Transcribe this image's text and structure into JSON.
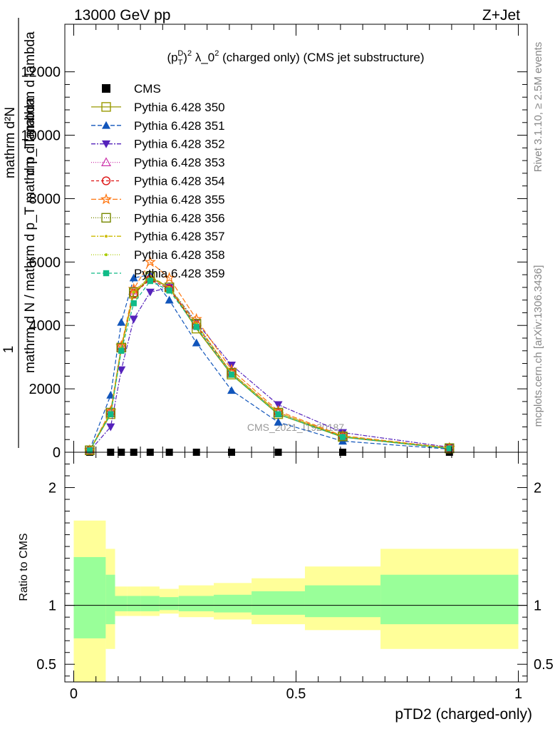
{
  "header": {
    "energy_label": "13000 GeV pp",
    "process_label": "Z+Jet",
    "plot_title": "(p_T^D)^2 λ_0^2 (charged only) (CMS jet substructure)"
  },
  "side_labels": {
    "rivet": "Rivet 3.1.10, ≥ 2.5M events",
    "mcplots": "mcplots.cern.ch [arXiv:1306.3436]"
  },
  "watermark": "CMS_2021_I1920187",
  "colors": {
    "band_yellow": "#ffff99",
    "band_green": "#99ff99",
    "cms": "#000000"
  },
  "chart_data": [
    {
      "type": "line",
      "panel": "main",
      "ylabel_numerator": "1",
      "ylabel_denominator": "mathrm d N / mathrm d p_T mathrm d lambda",
      "ylabel_top": "mathrm d^2N",
      "xlim": [
        -0.02,
        1.02
      ],
      "ylim": [
        0,
        13500
      ],
      "yticks": [
        0,
        2000,
        4000,
        6000,
        8000,
        10000,
        12000
      ],
      "ytick_labels": [
        "0",
        "2000",
        "4000",
        "6000",
        "8000",
        "10000",
        "12000"
      ],
      "legend_position": "top-left",
      "x": [
        0.036,
        0.083,
        0.107,
        0.135,
        0.172,
        0.215,
        0.276,
        0.355,
        0.46,
        0.605,
        0.845
      ],
      "cms_values": [
        0,
        0,
        0,
        0,
        0,
        0,
        0,
        0,
        0,
        0,
        0
      ],
      "series": [
        {
          "name": "CMS",
          "color": "#000000",
          "marker": "square-filled",
          "dash": "none",
          "values": [
            0,
            0,
            0,
            0,
            0,
            0,
            0,
            0,
            0,
            0,
            0
          ]
        },
        {
          "name": "Pythia 6.428 350",
          "color": "#999900",
          "marker": "square-open",
          "dash": "solid",
          "values": [
            60,
            1200,
            3300,
            5000,
            5500,
            5200,
            3900,
            2450,
            1200,
            480,
            120
          ]
        },
        {
          "name": "Pythia 6.428 351",
          "color": "#1155bb",
          "marker": "triangle-up-filled",
          "dash": "6,3",
          "values": [
            80,
            1800,
            4100,
            5500,
            5600,
            4800,
            3450,
            1950,
            950,
            350,
            100
          ]
        },
        {
          "name": "Pythia 6.428 352",
          "color": "#5522bb",
          "marker": "triangle-down-filled",
          "dash": "6,2,2,2",
          "values": [
            40,
            800,
            2600,
            4200,
            5050,
            5200,
            4100,
            2750,
            1500,
            620,
            160
          ]
        },
        {
          "name": "Pythia 6.428 353",
          "color": "#cc33aa",
          "marker": "triangle-up-open",
          "dash": "1,2",
          "values": [
            60,
            1250,
            3300,
            5100,
            5500,
            5200,
            4000,
            2500,
            1250,
            500,
            130
          ]
        },
        {
          "name": "Pythia 6.428 354",
          "color": "#dd1111",
          "marker": "circle-open",
          "dash": "4,3",
          "values": [
            60,
            1250,
            3300,
            5000,
            5450,
            5150,
            4000,
            2500,
            1250,
            490,
            130
          ]
        },
        {
          "name": "Pythia 6.428 355",
          "color": "#ff7711",
          "marker": "star-open",
          "dash": "7,3",
          "values": [
            60,
            1300,
            3350,
            5150,
            6000,
            5500,
            4200,
            2600,
            1300,
            520,
            140
          ]
        },
        {
          "name": "Pythia 6.428 356",
          "color": "#778800",
          "marker": "square-open",
          "dash": "1,2",
          "values": [
            60,
            1250,
            3300,
            5050,
            5550,
            5200,
            4050,
            2500,
            1250,
            500,
            130
          ]
        },
        {
          "name": "Pythia 6.428 357",
          "color": "#ccbb00",
          "marker": "dot-small",
          "dash": "6,2,2,2",
          "values": [
            60,
            1250,
            3300,
            5050,
            5550,
            5200,
            4050,
            2500,
            1250,
            500,
            130
          ]
        },
        {
          "name": "Pythia 6.428 358",
          "color": "#aacc00",
          "marker": "dot-small",
          "dash": "1,2",
          "values": [
            60,
            1250,
            3300,
            5050,
            5550,
            5200,
            4050,
            2500,
            1250,
            500,
            130
          ]
        },
        {
          "name": "Pythia 6.428 359",
          "color": "#11bb88",
          "marker": "square-filled-small",
          "dash": "5,3",
          "values": [
            60,
            1200,
            3200,
            4700,
            5400,
            5100,
            3950,
            2450,
            1200,
            480,
            120
          ]
        }
      ]
    },
    {
      "type": "area",
      "panel": "ratio",
      "xlabel": "pTD2 (charged-only)",
      "ylabel": "Ratio to CMS",
      "xlim": [
        -0.02,
        1.02
      ],
      "ylim": [
        0.35,
        2.3
      ],
      "xticks": [
        0,
        0.5,
        1
      ],
      "xtick_labels": [
        "0",
        "0.5",
        "1"
      ],
      "yticks": [
        0.5,
        1,
        2
      ],
      "ytick_labels": [
        "0.5",
        "1",
        "2"
      ],
      "bin_edges": [
        0.0,
        0.072,
        0.093,
        0.12,
        0.15,
        0.193,
        0.236,
        0.315,
        0.4,
        0.52,
        0.69,
        1.0
      ],
      "yellow_lo": [
        0.35,
        0.63,
        0.91,
        0.91,
        0.91,
        0.93,
        0.9,
        0.88,
        0.84,
        0.79,
        0.63
      ],
      "yellow_hi": [
        1.72,
        1.48,
        1.16,
        1.16,
        1.16,
        1.14,
        1.17,
        1.19,
        1.23,
        1.33,
        1.48
      ],
      "green_lo": [
        0.72,
        0.84,
        0.95,
        0.95,
        0.95,
        0.96,
        0.95,
        0.94,
        0.92,
        0.9,
        0.84
      ],
      "green_hi": [
        1.41,
        1.26,
        1.08,
        1.08,
        1.08,
        1.07,
        1.08,
        1.09,
        1.12,
        1.17,
        1.26
      ],
      "reference": 1
    }
  ]
}
